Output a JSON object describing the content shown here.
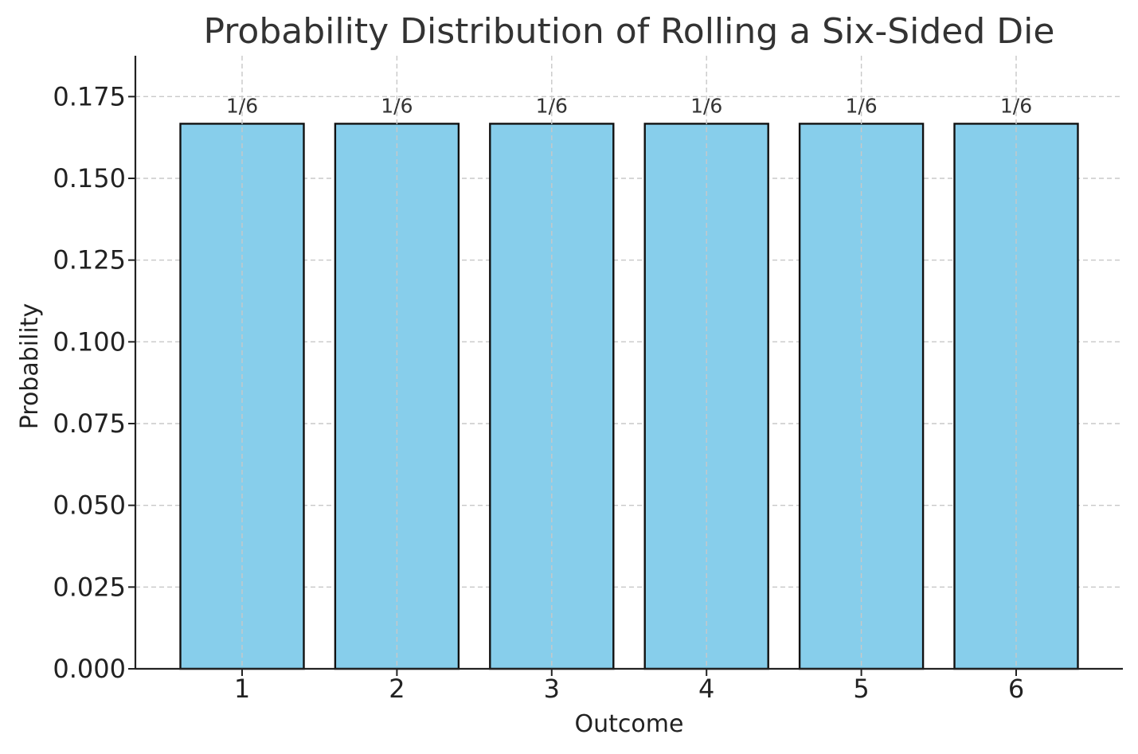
{
  "chart_data": {
    "type": "bar",
    "title": "Probability Distribution of Rolling a Six-Sided Die",
    "xlabel": "Outcome",
    "ylabel": "Probability",
    "categories": [
      "1",
      "2",
      "3",
      "4",
      "5",
      "6"
    ],
    "values": [
      0.1667,
      0.1667,
      0.1667,
      0.1667,
      0.1667,
      0.1667
    ],
    "data_labels": [
      "1/6",
      "1/6",
      "1/6",
      "1/6",
      "1/6",
      "1/6"
    ],
    "ylim": [
      0,
      0.1875
    ],
    "yticks": [
      0,
      0.025,
      0.05,
      0.075,
      0.1,
      0.125,
      0.15,
      0.175
    ],
    "ytick_labels": [
      "0.000",
      "0.025",
      "0.050",
      "0.075",
      "0.100",
      "0.125",
      "0.150",
      "0.175"
    ],
    "grid": true,
    "bar_color": "#87CEEB",
    "edge_color": "#111111"
  }
}
